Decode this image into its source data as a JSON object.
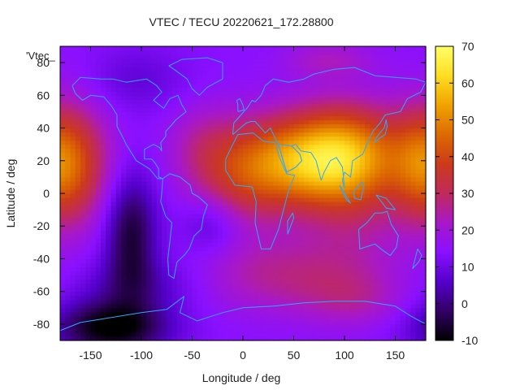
{
  "colors": {
    "coastline": "#2fa8ff",
    "palette": [
      "#000000",
      "#330066",
      "#5500cc",
      "#8a10ff",
      "#a818c8",
      "#c02a5c",
      "#cc3a1a",
      "#dd6a00",
      "#f0a300",
      "#ffdd22",
      "#ffff66"
    ]
  },
  "chart_data": {
    "type": "heatmap",
    "title": "VTEC / TECU 20220621_172.28800",
    "xlabel": "Longitude / deg",
    "ylabel": "Latitude / deg",
    "legend_label": "'Vtec_",
    "xlim": [
      -180,
      180
    ],
    "ylim": [
      -90,
      90
    ],
    "xticks": [
      "-150",
      "-100",
      "-50",
      "0",
      "50",
      "100",
      "150"
    ],
    "yticks": [
      "80",
      "60",
      "40",
      "20",
      "0",
      "-20",
      "-40",
      "-60",
      "-80"
    ],
    "colorbar": {
      "min": -10,
      "max": 70,
      "ticks": [
        "70",
        "60",
        "50",
        "40",
        "30",
        "20",
        "10",
        "0",
        "-10"
      ]
    },
    "grid_resolution_deg": {
      "lon": 5,
      "lat": 2.5
    },
    "field_features": [
      {
        "label": "peak",
        "lon": 100,
        "lat": 20,
        "value": 65
      },
      {
        "label": "minimum",
        "lon": -130,
        "lat": -82,
        "value": -8
      },
      {
        "label": "minimum",
        "lon": -110,
        "lat": -25,
        "value": -2
      }
    ]
  }
}
